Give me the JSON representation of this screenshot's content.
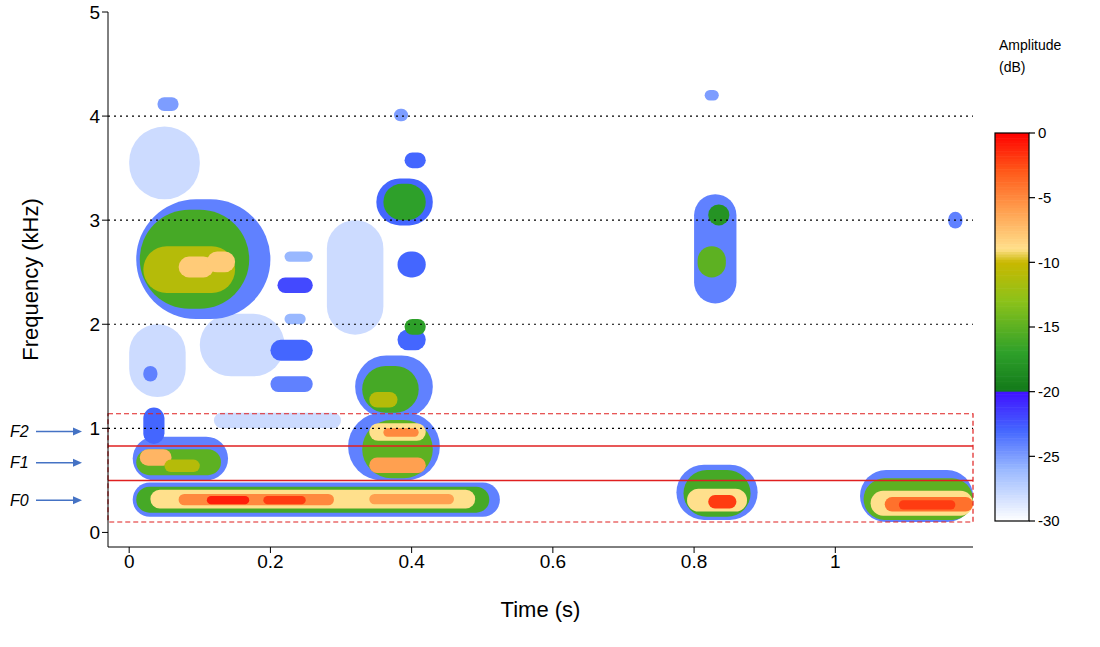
{
  "chart_data": {
    "type": "heatmap",
    "x_label": "Time (s)",
    "y_label": "Frequency (kHz)",
    "xlim": [
      -0.03,
      1.195
    ],
    "xticks": [
      0,
      0.2,
      0.4,
      0.6,
      0.8,
      1
    ],
    "ylim": [
      -0.14,
      5
    ],
    "yticks": [
      0,
      1,
      2,
      3,
      4,
      5
    ],
    "grid": true,
    "colorbar": {
      "title": "Amplitude (dB)",
      "range": [
        -30,
        0
      ],
      "ticks": [
        0,
        -5,
        -10,
        -15,
        -20,
        -25,
        -30
      ]
    },
    "cells": [
      {
        "time": [
          0.0,
          0.1
        ],
        "freq": [
          3.2,
          3.9
        ],
        "db": -28
      },
      {
        "time": [
          0.0,
          0.08
        ],
        "freq": [
          1.3,
          2.0
        ],
        "db": -28
      },
      {
        "time": [
          0.1,
          0.22
        ],
        "freq": [
          1.5,
          2.1
        ],
        "db": -28
      },
      {
        "time": [
          0.12,
          0.3
        ],
        "freq": [
          1.0,
          1.15
        ],
        "db": -28
      },
      {
        "time": [
          0.28,
          0.36
        ],
        "freq": [
          1.9,
          3.0
        ],
        "db": -28
      },
      {
        "time": [
          0.005,
          0.525
        ],
        "freq": [
          0.15,
          0.48
        ],
        "db": -24
      },
      {
        "time": [
          0.01,
          0.51
        ],
        "freq": [
          0.19,
          0.44
        ],
        "db": -16
      },
      {
        "time": [
          0.03,
          0.49
        ],
        "freq": [
          0.23,
          0.41
        ],
        "db": -9
      },
      {
        "time": [
          0.07,
          0.29
        ],
        "freq": [
          0.26,
          0.37
        ],
        "db": -5
      },
      {
        "time": [
          0.11,
          0.17
        ],
        "freq": [
          0.27,
          0.35
        ],
        "db": -1
      },
      {
        "time": [
          0.19,
          0.25
        ],
        "freq": [
          0.27,
          0.35
        ],
        "db": -2
      },
      {
        "time": [
          0.34,
          0.46
        ],
        "freq": [
          0.27,
          0.37
        ],
        "db": -6
      },
      {
        "time": [
          0.005,
          0.14
        ],
        "freq": [
          0.5,
          0.92
        ],
        "db": -24
      },
      {
        "time": [
          0.01,
          0.13
        ],
        "freq": [
          0.55,
          0.8
        ],
        "db": -15
      },
      {
        "time": [
          0.015,
          0.06
        ],
        "freq": [
          0.64,
          0.8
        ],
        "db": -7
      },
      {
        "time": [
          0.05,
          0.1
        ],
        "freq": [
          0.58,
          0.7
        ],
        "db": -11
      },
      {
        "time": [
          0.02,
          0.05
        ],
        "freq": [
          0.85,
          1.2
        ],
        "db": -23
      },
      {
        "time": [
          0.01,
          0.2
        ],
        "freq": [
          2.05,
          3.2
        ],
        "db": -24
      },
      {
        "time": [
          0.015,
          0.17
        ],
        "freq": [
          2.15,
          3.1
        ],
        "db": -16
      },
      {
        "time": [
          0.02,
          0.15
        ],
        "freq": [
          2.3,
          2.75
        ],
        "db": -11
      },
      {
        "time": [
          0.07,
          0.12
        ],
        "freq": [
          2.45,
          2.65
        ],
        "db": -8
      },
      {
        "time": [
          0.11,
          0.15
        ],
        "freq": [
          2.5,
          2.7
        ],
        "db": -8
      },
      {
        "time": [
          0.04,
          0.07
        ],
        "freq": [
          4.05,
          4.18
        ],
        "db": -25
      },
      {
        "time": [
          0.02,
          0.04
        ],
        "freq": [
          1.45,
          1.6
        ],
        "db": -24
      },
      {
        "time": [
          0.2,
          0.26
        ],
        "freq": [
          1.65,
          1.85
        ],
        "db": -23
      },
      {
        "time": [
          0.2,
          0.26
        ],
        "freq": [
          1.35,
          1.5
        ],
        "db": -24
      },
      {
        "time": [
          0.21,
          0.26
        ],
        "freq": [
          2.3,
          2.45
        ],
        "db": -22
      },
      {
        "time": [
          0.22,
          0.26
        ],
        "freq": [
          2.6,
          2.7
        ],
        "db": -26
      },
      {
        "time": [
          0.22,
          0.25
        ],
        "freq": [
          2.0,
          2.1
        ],
        "db": -26
      },
      {
        "time": [
          0.31,
          0.44
        ],
        "freq": [
          0.5,
          1.15
        ],
        "db": -24
      },
      {
        "time": [
          0.33,
          0.43
        ],
        "freq": [
          0.52,
          1.08
        ],
        "db": -15
      },
      {
        "time": [
          0.34,
          0.42
        ],
        "freq": [
          0.57,
          0.72
        ],
        "db": -6
      },
      {
        "time": [
          0.34,
          0.42
        ],
        "freq": [
          0.88,
          1.05
        ],
        "db": -9
      },
      {
        "time": [
          0.36,
          0.41
        ],
        "freq": [
          0.92,
          1.0
        ],
        "db": -5
      },
      {
        "time": [
          0.32,
          0.43
        ],
        "freq": [
          1.1,
          1.7
        ],
        "db": -24
      },
      {
        "time": [
          0.33,
          0.41
        ],
        "freq": [
          1.15,
          1.6
        ],
        "db": -16
      },
      {
        "time": [
          0.34,
          0.38
        ],
        "freq": [
          1.2,
          1.35
        ],
        "db": -11
      },
      {
        "time": [
          0.38,
          0.42
        ],
        "freq": [
          1.75,
          1.95
        ],
        "db": -23
      },
      {
        "time": [
          0.39,
          0.42
        ],
        "freq": [
          1.9,
          2.05
        ],
        "db": -17
      },
      {
        "time": [
          0.38,
          0.42
        ],
        "freq": [
          2.45,
          2.7
        ],
        "db": -23
      },
      {
        "time": [
          0.35,
          0.43
        ],
        "freq": [
          2.95,
          3.4
        ],
        "db": -23
      },
      {
        "time": [
          0.36,
          0.42
        ],
        "freq": [
          3.0,
          3.35
        ],
        "db": -17
      },
      {
        "time": [
          0.39,
          0.42
        ],
        "freq": [
          3.5,
          3.65
        ],
        "db": -23
      },
      {
        "time": [
          0.375,
          0.395
        ],
        "freq": [
          3.95,
          4.07
        ],
        "db": -25
      },
      {
        "time": [
          0.775,
          0.89
        ],
        "freq": [
          0.12,
          0.65
        ],
        "db": -24
      },
      {
        "time": [
          0.785,
          0.88
        ],
        "freq": [
          0.15,
          0.6
        ],
        "db": -16
      },
      {
        "time": [
          0.79,
          0.875
        ],
        "freq": [
          0.2,
          0.42
        ],
        "db": -9
      },
      {
        "time": [
          0.82,
          0.86
        ],
        "freq": [
          0.23,
          0.36
        ],
        "db": -2
      },
      {
        "time": [
          0.8,
          0.86
        ],
        "freq": [
          2.2,
          3.25
        ],
        "db": -24
      },
      {
        "time": [
          0.805,
          0.845
        ],
        "freq": [
          2.45,
          2.75
        ],
        "db": -15
      },
      {
        "time": [
          0.82,
          0.85
        ],
        "freq": [
          2.95,
          3.15
        ],
        "db": -18
      },
      {
        "time": [
          0.815,
          0.835
        ],
        "freq": [
          4.15,
          4.25
        ],
        "db": -25
      },
      {
        "time": [
          1.035,
          1.195
        ],
        "freq": [
          0.1,
          0.6
        ],
        "db": -24
      },
      {
        "time": [
          1.04,
          1.195
        ],
        "freq": [
          0.12,
          0.52
        ],
        "db": -15
      },
      {
        "time": [
          1.05,
          1.195
        ],
        "freq": [
          0.16,
          0.4
        ],
        "db": -9
      },
      {
        "time": [
          1.07,
          1.195
        ],
        "freq": [
          0.2,
          0.34
        ],
        "db": -4
      },
      {
        "time": [
          1.09,
          1.17
        ],
        "freq": [
          0.22,
          0.31
        ],
        "db": -2
      },
      {
        "time": [
          1.16,
          1.18
        ],
        "freq": [
          2.92,
          3.08
        ],
        "db": -24
      }
    ],
    "annotations": [
      {
        "label": "F2",
        "y": 0.97
      },
      {
        "label": "F1",
        "y": 0.67
      },
      {
        "label": "F0",
        "y": 0.31
      }
    ],
    "band_box": {
      "ylim": [
        0.1,
        1.14
      ]
    },
    "band_lines": [
      0.5,
      0.83
    ]
  }
}
